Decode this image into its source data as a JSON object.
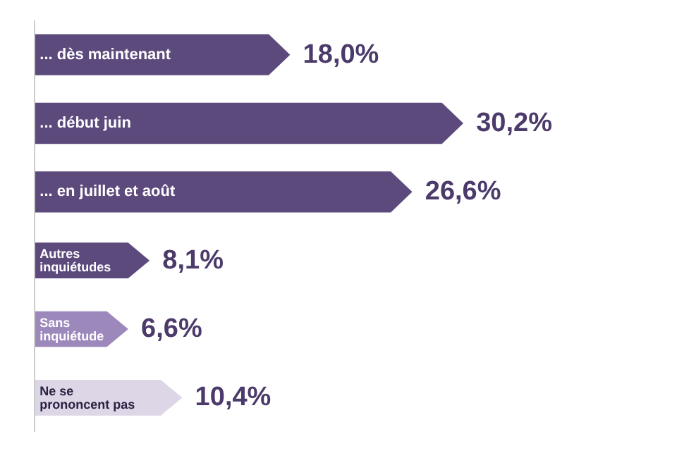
{
  "chart_data": {
    "type": "bar",
    "orientation": "horizontal",
    "categories": [
      "... dès maintenant",
      "... début juin",
      "... en juillet et août",
      "Autres\ninquiétudes",
      "Sans\ninquiétude",
      "Ne se\nprononcent pas"
    ],
    "values": [
      18.0,
      30.2,
      26.6,
      8.1,
      6.6,
      10.4
    ],
    "value_labels": [
      "18,0%",
      "30,2%",
      "26,6%",
      "8,1%",
      "6,6%",
      "10,4%"
    ],
    "colors": [
      "#5d4a7d",
      "#5d4a7d",
      "#5d4a7d",
      "#5d4a7d",
      "#9c88ba",
      "#ddd6e6"
    ],
    "tick_labels": false,
    "grid": false
  }
}
